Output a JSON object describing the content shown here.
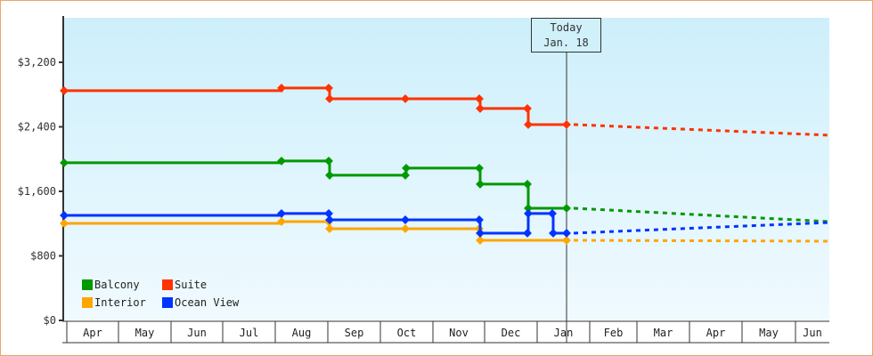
{
  "chart_data": {
    "type": "line",
    "title": "",
    "xlabel": "",
    "ylabel": "",
    "ylim": [
      0,
      3840
    ],
    "y_ticks": [
      "$0",
      "$800",
      "$1,600",
      "$2,400",
      "$3,200"
    ],
    "x_ticks": [
      "Apr",
      "May",
      "Jun",
      "Jul",
      "Aug",
      "Sep",
      "Oct",
      "Nov",
      "Dec",
      "Jan",
      "Feb",
      "Mar",
      "Apr",
      "May",
      "Jun"
    ],
    "grid": false,
    "legend_position": "lower-left",
    "annotation": {
      "label_line1": "Today",
      "label_line2": "Jan. 18"
    },
    "series": [
      {
        "name": "Balcony",
        "color": "#009900",
        "history": [
          [
            "Apr",
            1954
          ],
          [
            "Aug",
            1976
          ],
          [
            "Sep",
            1976
          ],
          [
            "Sep",
            1800
          ],
          [
            "Oct",
            1800
          ],
          [
            "Oct",
            1888
          ],
          [
            "Nov",
            1888
          ],
          [
            "Nov",
            1689
          ],
          [
            "Dec",
            1689
          ],
          [
            "Dec",
            1391
          ],
          [
            "Jan 18",
            1391
          ]
        ],
        "forecast_end": 1225
      },
      {
        "name": "Suite",
        "color": "#ff3300",
        "history": [
          [
            "Apr",
            2848
          ],
          [
            "Aug",
            2881
          ],
          [
            "Sep",
            2881
          ],
          [
            "Sep",
            2748
          ],
          [
            "Oct",
            2748
          ],
          [
            "Nov",
            2748
          ],
          [
            "Nov",
            2627
          ],
          [
            "Dec",
            2627
          ],
          [
            "Dec",
            2428
          ],
          [
            "Jan 18",
            2428
          ]
        ],
        "forecast_end": 2296
      },
      {
        "name": "Interior",
        "color": "#ffa500",
        "history": [
          [
            "Apr",
            1203
          ],
          [
            "Aug",
            1225
          ],
          [
            "Sep",
            1225
          ],
          [
            "Sep",
            1137
          ],
          [
            "Oct",
            1137
          ],
          [
            "Nov",
            1137
          ],
          [
            "Nov",
            993
          ],
          [
            "Jan 18",
            993
          ]
        ],
        "forecast_end": 982
      },
      {
        "name": "Ocean View",
        "color": "#0033ff",
        "history": [
          [
            "Apr",
            1302
          ],
          [
            "Aug",
            1325
          ],
          [
            "Sep",
            1325
          ],
          [
            "Sep",
            1247
          ],
          [
            "Oct",
            1247
          ],
          [
            "Nov",
            1247
          ],
          [
            "Nov",
            1082
          ],
          [
            "Dec",
            1082
          ],
          [
            "Dec",
            1325
          ],
          [
            "Jan",
            1325
          ],
          [
            "Jan",
            1082
          ],
          [
            "Jan 18",
            1082
          ]
        ],
        "forecast_end": 1214
      }
    ]
  },
  "legend": {
    "items": [
      {
        "label": "Balcony",
        "color": "#009900"
      },
      {
        "label": "Suite",
        "color": "#ff3300"
      },
      {
        "label": "Interior",
        "color": "#ffa500"
      },
      {
        "label": "Ocean View",
        "color": "#0033ff"
      }
    ]
  },
  "today": {
    "line1": "Today",
    "line2": "Jan. 18"
  }
}
